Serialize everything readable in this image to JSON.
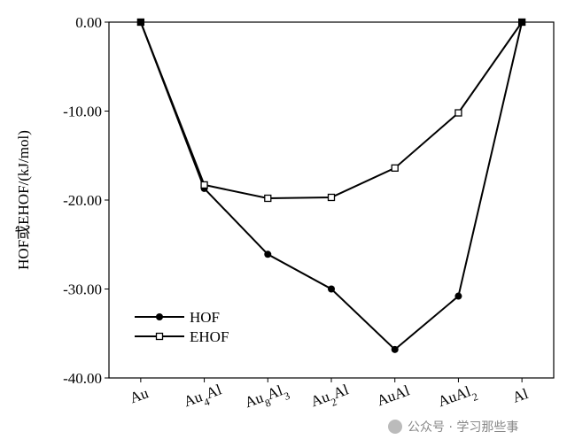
{
  "chart_data": {
    "type": "line",
    "y_label": "HOF或EHOF/(kJ/mol)",
    "categories": [
      "Au",
      "Au4Al",
      "Au8Al3",
      "Au2Al",
      "AuAl",
      "AuAl2",
      "Al"
    ],
    "series": [
      {
        "name": "HOF",
        "color": "#000000",
        "marker": "circle",
        "values": [
          0,
          -18.7,
          -26.1,
          -30.0,
          -36.8,
          -30.8,
          0
        ]
      },
      {
        "name": "EHOF",
        "color": "#000000",
        "marker": "square",
        "values": [
          0,
          -18.3,
          -19.8,
          -19.7,
          -16.4,
          -10.2,
          0
        ]
      }
    ],
    "ylim": [
      -40,
      0
    ],
    "yticks": [
      {
        "value": 0,
        "label": "0.00"
      },
      {
        "value": -10,
        "label": "-10.00"
      },
      {
        "value": -20,
        "label": "-20.00"
      },
      {
        "value": -30,
        "label": "-30.00"
      },
      {
        "value": -40,
        "label": "-40.00"
      }
    ],
    "legend": "lower left",
    "watermark": "公众号 · 学习那些事"
  }
}
